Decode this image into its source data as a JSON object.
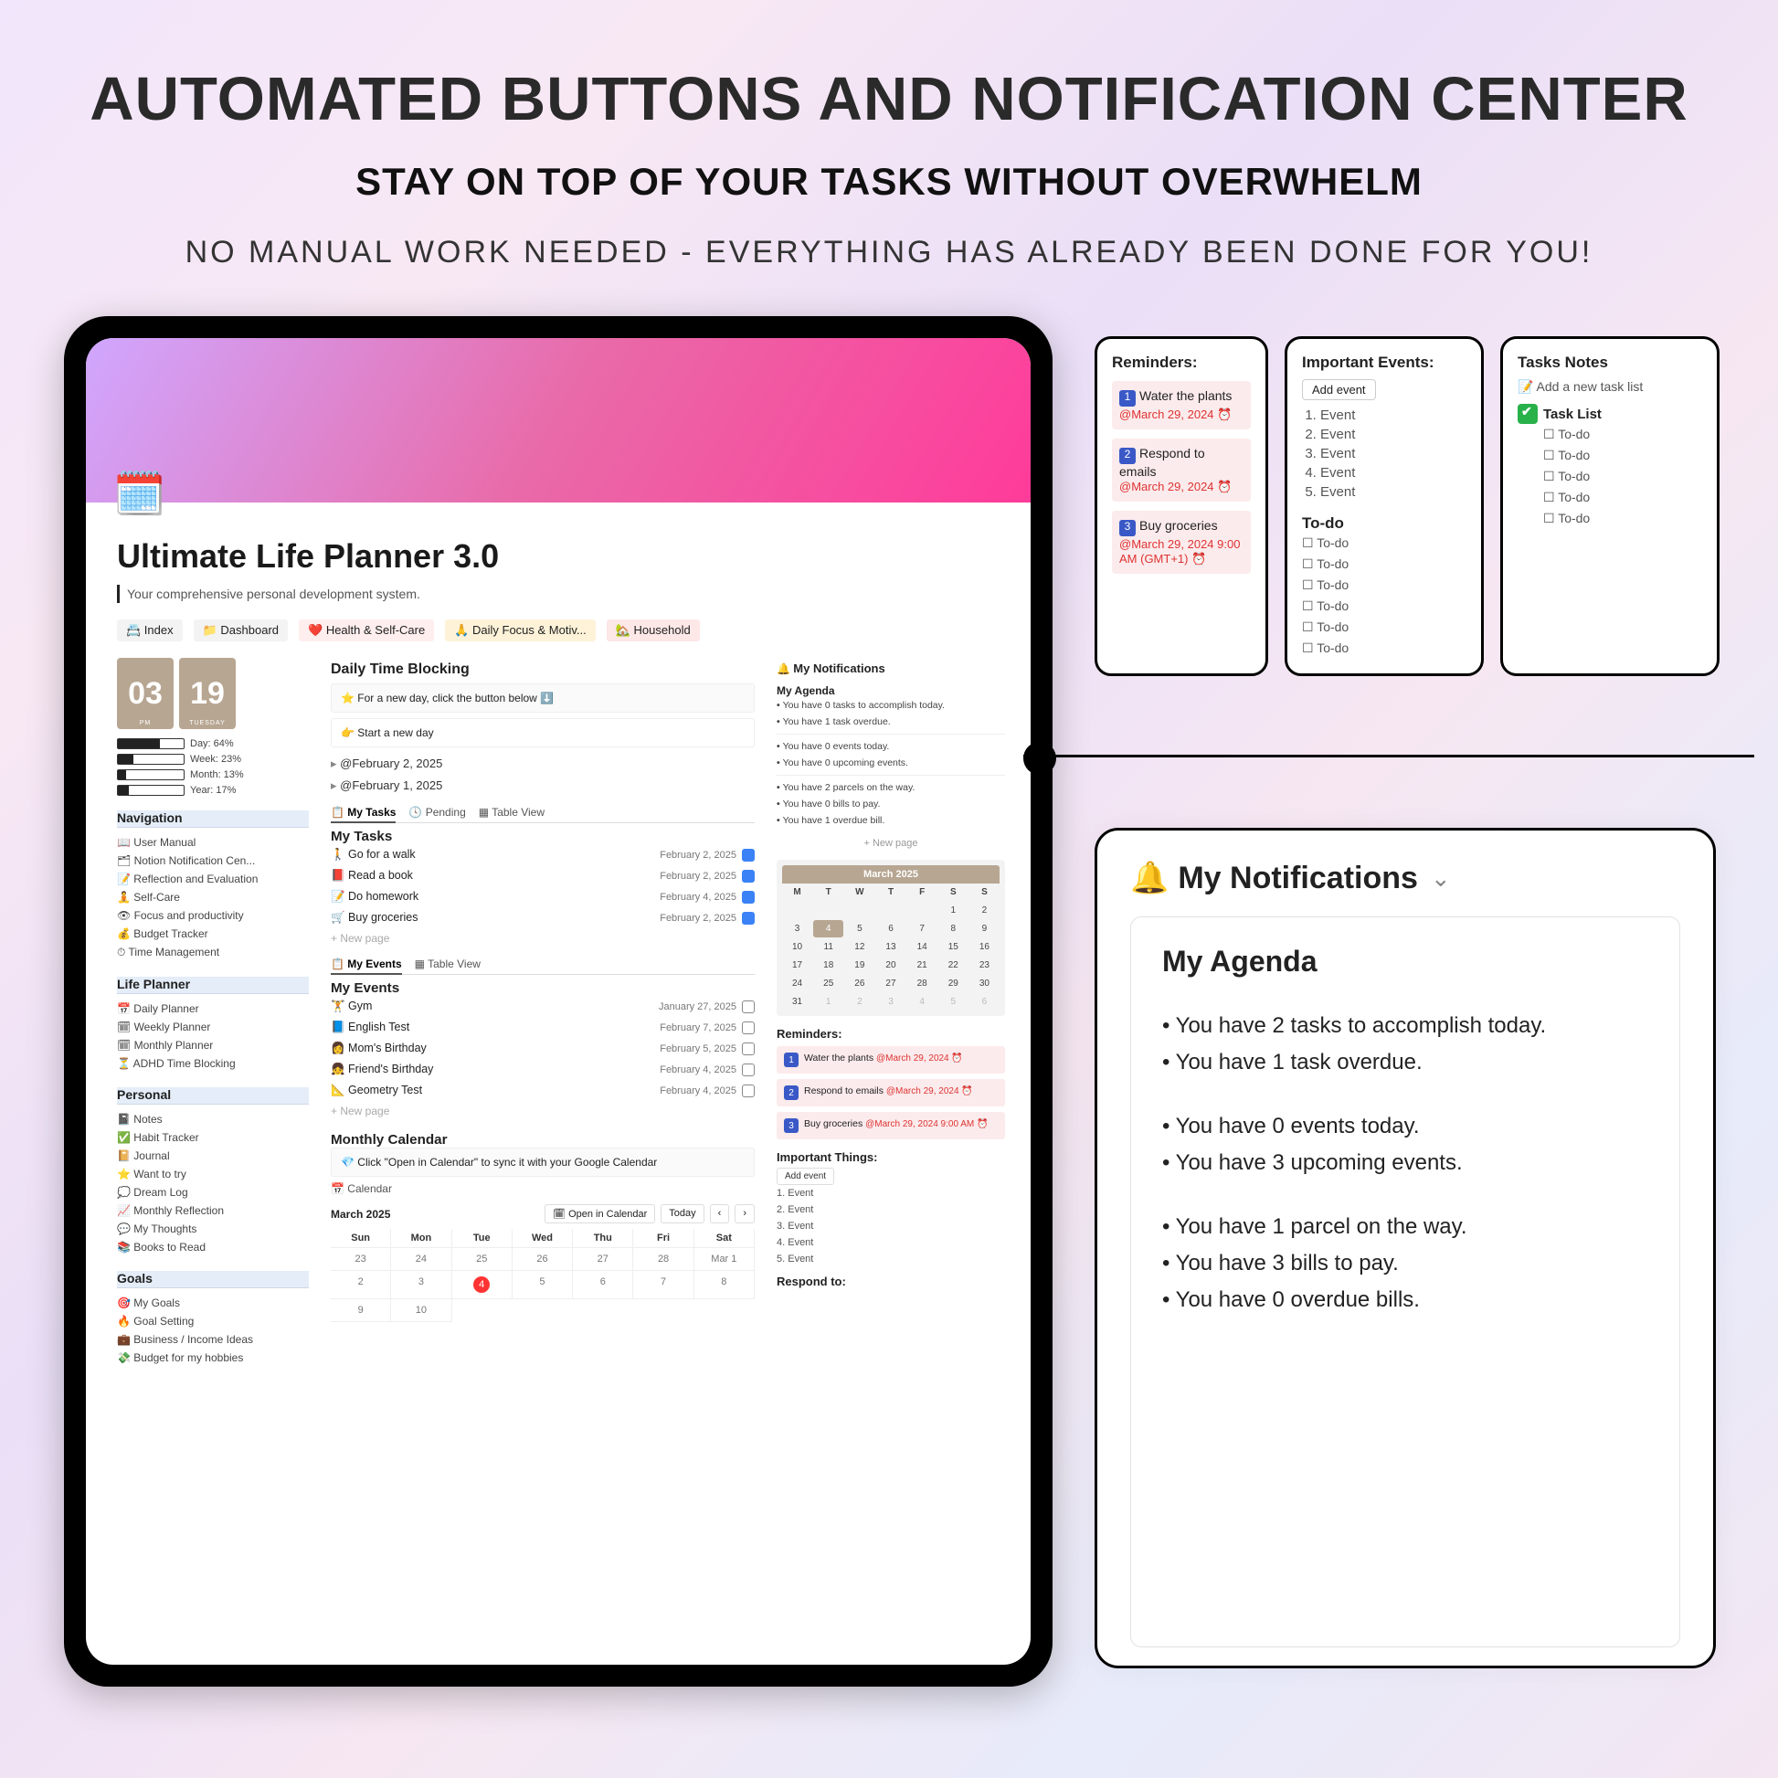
{
  "hero": {
    "title": "AUTOMATED BUTTONS AND NOTIFICATION CENTER",
    "subtitle": "STAY ON TOP OF YOUR TASKS WITHOUT OVERWHELM",
    "tagline": "NO MANUAL WORK NEEDED - EVERYTHING HAS ALREADY BEEN DONE FOR YOU!"
  },
  "planner": {
    "title": "Ultimate Life Planner 3.0",
    "subtitle": "Your comprehensive personal development system.",
    "top_tabs": {
      "index": "📇 Index",
      "dashboard": "📁 Dashboard",
      "health": "❤️ Health & Self-Care",
      "daily": "🙏 Daily Focus & Motiv...",
      "household": "🏡 Household"
    },
    "clock": {
      "hour": "03",
      "hour_sub": "PM",
      "min": "19",
      "min_sub": "TUESDAY"
    },
    "progress": {
      "day": {
        "label": "Day: 64%",
        "pct": 64
      },
      "week": {
        "label": "Week: 23%",
        "pct": 23
      },
      "month": {
        "label": "Month: 13%",
        "pct": 13
      },
      "year": {
        "label": "Year: 17%",
        "pct": 17
      }
    },
    "nav": {
      "navigation": {
        "title": "Navigation",
        "items": [
          "📖 User Manual",
          "🗂 Notion Notification Cen...",
          "📝 Reflection and Evaluation",
          "🧘 Self-Care",
          "👁 Focus and productivity",
          "💰 Budget Tracker",
          "⏱ Time Management"
        ]
      },
      "life_planner": {
        "title": "Life Planner",
        "items": [
          "📅 Daily Planner",
          "🗓 Weekly Planner",
          "🗓 Monthly Planner",
          "⏳ ADHD Time Blocking"
        ]
      },
      "personal": {
        "title": "Personal",
        "items": [
          "📓 Notes",
          "✅ Habit Tracker",
          "📔 Journal",
          "⭐ Want to try",
          "💭 Dream Log",
          "📈 Monthly Reflection",
          "💬 My Thoughts",
          "📚 Books to Read"
        ]
      },
      "goals": {
        "title": "Goals",
        "items": [
          "🎯 My Goals",
          "🔥 Goal Setting",
          "💼 Business / Income Ideas",
          "💸 Budget for my hobbies"
        ]
      }
    },
    "daily_time_blocking": {
      "title": "Daily Time Blocking",
      "callout": "⭐  For a new day, click the button below ⬇️",
      "button": "👉 Start a new day",
      "toggles": [
        "@February 2, 2025",
        "@February 1, 2025"
      ]
    },
    "task_tabs": {
      "a": "📋 My Tasks",
      "b": "🕓 Pending",
      "c": "▦ Table View"
    },
    "my_tasks": {
      "title": "My Tasks",
      "rows": [
        {
          "icon": "🚶",
          "name": "Go for a walk",
          "date": "February 2, 2025",
          "done": true
        },
        {
          "icon": "📕",
          "name": "Read a book",
          "date": "February 2, 2025",
          "done": true
        },
        {
          "icon": "📝",
          "name": "Do homework",
          "date": "February 4, 2025",
          "done": true
        },
        {
          "icon": "🛒",
          "name": "Buy groceries",
          "date": "February 2, 2025",
          "done": true
        }
      ],
      "new": "New page"
    },
    "event_tabs": {
      "a": "📋 My Events",
      "b": "▦ Table View"
    },
    "my_events": {
      "title": "My Events",
      "rows": [
        {
          "icon": "🏋️",
          "name": "Gym",
          "date": "January 27, 2025"
        },
        {
          "icon": "📘",
          "name": "English Test",
          "date": "February 7, 2025"
        },
        {
          "icon": "👩",
          "name": "Mom's Birthday",
          "date": "February 5, 2025"
        },
        {
          "icon": "👧",
          "name": "Friend's Birthday",
          "date": "February 4, 2025"
        },
        {
          "icon": "📐",
          "name": "Geometry Test",
          "date": "February 4, 2025"
        }
      ],
      "new": "New page"
    },
    "monthly_calendar": {
      "title": "Monthly Calendar",
      "callout": "💎  Click \"Open in Calendar\" to sync it with your Google Calendar",
      "tab": "📅 Calendar",
      "month": "March 2025",
      "open": "🗓 Open in Calendar",
      "today": "Today",
      "dow": [
        "Sun",
        "Mon",
        "Tue",
        "Wed",
        "Thu",
        "Fri",
        "Sat"
      ]
    },
    "notifications": {
      "title": "My Notifications",
      "agenda_title": "My Agenda",
      "agenda1": [
        "You have 0 tasks to accomplish today.",
        "You have 1 task overdue."
      ],
      "agenda2": [
        "You have 0 events today.",
        "You have 0 upcoming events."
      ],
      "agenda3": [
        "You have 2 parcels on the way.",
        "You have 0 bills to pay.",
        "You have 1 overdue bill."
      ],
      "new": "New page",
      "mini_month": "March 2025",
      "reminders_title": "Reminders:",
      "reminders": [
        {
          "n": "1",
          "t": "Water the plants",
          "d": "@March 29, 2024 ⏰"
        },
        {
          "n": "2",
          "t": "Respond to emails",
          "d": "@March 29, 2024 ⏰"
        },
        {
          "n": "3",
          "t": "Buy groceries",
          "d": "@March 29, 2024 9:00 AM ⏰"
        }
      ],
      "important_title": "Important Things:",
      "important_add": "Add event",
      "important": [
        "1.  Event",
        "2.  Event",
        "3.  Event",
        "4.  Event",
        "5.  Event"
      ],
      "respond": "Respond to:"
    }
  },
  "side_reminders": {
    "title": "Reminders:",
    "items": [
      {
        "n": "1",
        "t": "Water the plants",
        "d": "@March 29, 2024 ⏰"
      },
      {
        "n": "2",
        "t": "Respond to emails",
        "d": "@March 29, 2024 ⏰"
      },
      {
        "n": "3",
        "t": "Buy groceries",
        "d": "@March 29, 2024 9:00 AM (GMT+1) ⏰"
      }
    ]
  },
  "side_events": {
    "title": "Important Events:",
    "add": "Add event",
    "events": [
      "Event",
      "Event",
      "Event",
      "Event",
      "Event"
    ],
    "todo_title": "To-do",
    "todos": [
      "To-do",
      "To-do",
      "To-do",
      "To-do",
      "To-do",
      "To-do"
    ]
  },
  "side_tasks": {
    "title": "Tasks Notes",
    "add": "📝 Add a new task list",
    "list_title": "Task List",
    "todos": [
      "To-do",
      "To-do",
      "To-do",
      "To-do",
      "To-do"
    ]
  },
  "big_notif": {
    "title": "My Notifications",
    "agenda_title": "My Agenda",
    "g1": [
      "You have 2 tasks to accomplish today.",
      "You have 1 task overdue."
    ],
    "g2": [
      "You have 0 events today.",
      "You have 3 upcoming events."
    ],
    "g3": [
      "You have 1 parcel on the way.",
      "You have 3 bills to pay.",
      "You have 0 overdue bills."
    ]
  }
}
